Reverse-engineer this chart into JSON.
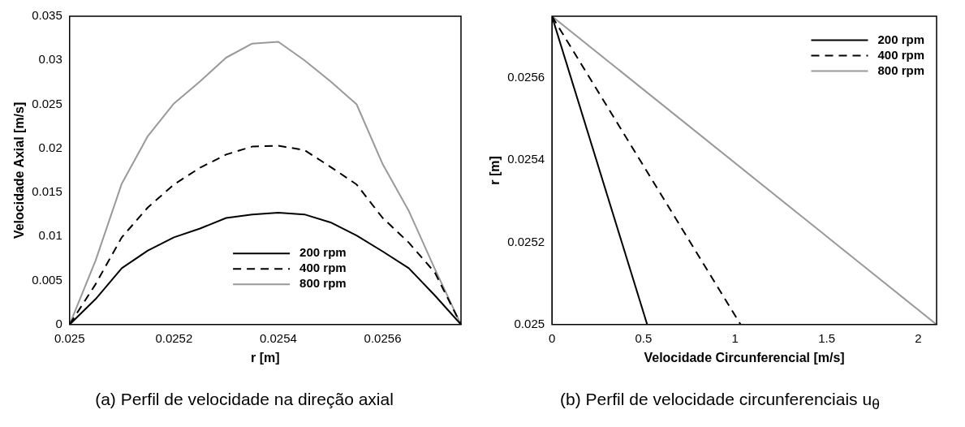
{
  "chart_data": [
    {
      "type": "line",
      "xlabel": "r [m]",
      "ylabel": "Velocidade Axial [m/s]",
      "annotations": [
        "(a) Perfil de velocidade na direção axial"
      ],
      "x": [
        0.025,
        0.02505,
        0.0251,
        0.02515,
        0.0252,
        0.02525,
        0.0253,
        0.02535,
        0.0254,
        0.02545,
        0.0255,
        0.02555,
        0.0256,
        0.02565,
        0.0257,
        0.02575
      ],
      "series": [
        {
          "name": "200 rpm",
          "color": "#000000",
          "line_style": "solid",
          "values": [
            0,
            0.0029,
            0.0064,
            0.0084,
            0.0099,
            0.0109,
            0.0121,
            0.0125,
            0.0127,
            0.0125,
            0.0116,
            0.0101,
            0.0083,
            0.0064,
            0.0033,
            0
          ]
        },
        {
          "name": "400 rpm",
          "color": "#000000",
          "line_style": "dashed",
          "values": [
            0,
            0.0046,
            0.0099,
            0.0133,
            0.0159,
            0.0178,
            0.0193,
            0.0202,
            0.0203,
            0.0198,
            0.0179,
            0.0159,
            0.0121,
            0.0093,
            0.0059,
            0
          ]
        },
        {
          "name": "800 rpm",
          "color": "#999999",
          "line_style": "solid",
          "values": [
            0,
            0.0073,
            0.016,
            0.0214,
            0.0251,
            0.0276,
            0.0303,
            0.0319,
            0.0321,
            0.03,
            0.0276,
            0.025,
            0.0182,
            0.0129,
            0.0063,
            0
          ]
        }
      ],
      "xlim": [
        0.025,
        0.02575
      ],
      "xticks": [
        0.025,
        0.0252,
        0.0254,
        0.0256
      ],
      "ylim": [
        0,
        0.035
      ],
      "yticks": [
        0,
        0.005,
        0.01,
        0.015,
        0.02,
        0.025,
        0.03,
        0.035
      ],
      "grid": false,
      "legend": "bottom",
      "marker": "none"
    },
    {
      "type": "line",
      "xlabel": "Velocidade Circunferencial [m/s]",
      "ylabel": "r [m]",
      "annotations": [
        "(b) Perfil de velocidade circunferenciais u$_{θ}$"
      ],
      "series": [
        {
          "name": "200 rpm",
          "color": "#000000",
          "line_style": "solid",
          "x": [
            0,
            0.52
          ],
          "values": [
            0.02575,
            0.025
          ]
        },
        {
          "name": "400 rpm",
          "color": "#000000",
          "line_style": "dashed",
          "x": [
            0,
            1.03
          ],
          "values": [
            0.02575,
            0.025
          ]
        },
        {
          "name": "800 rpm",
          "color": "#999999",
          "line_style": "solid",
          "x": [
            0,
            2.1
          ],
          "values": [
            0.02575,
            0.025
          ]
        }
      ],
      "xlim": [
        0,
        2.1
      ],
      "xticks": [
        0,
        0.5,
        1,
        1.5,
        2
      ],
      "ylim": [
        0.025,
        0.02575
      ],
      "yticks": [
        0.025,
        0.0252,
        0.0254,
        0.0256
      ],
      "grid": false,
      "legend": "top right",
      "marker": "none"
    }
  ]
}
